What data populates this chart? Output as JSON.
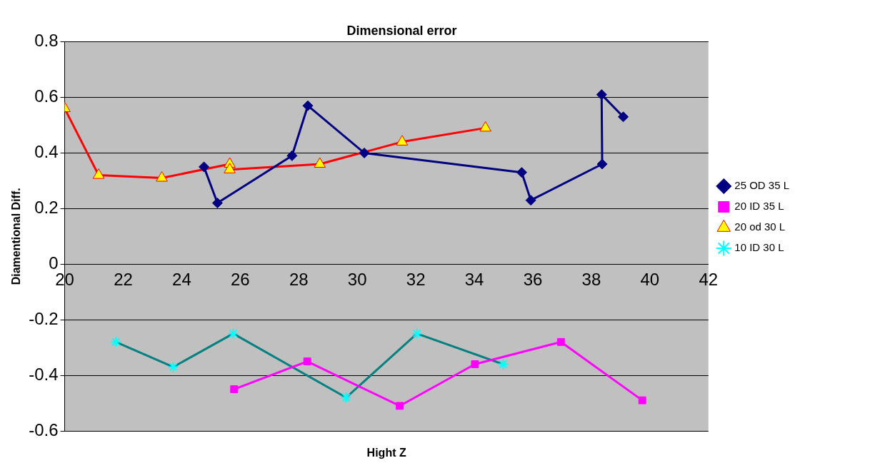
{
  "chart_data": {
    "type": "line",
    "title": "Dimensional error",
    "xlabel": "Hight Z",
    "ylabel": "Diamentional Diff.",
    "xlim": [
      20,
      42
    ],
    "xticks": [
      20,
      22,
      24,
      26,
      28,
      30,
      32,
      34,
      36,
      38,
      40,
      42
    ],
    "ylim": [
      -0.6,
      0.8
    ],
    "yticks": [
      -0.6,
      -0.4,
      -0.2,
      0,
      0.2,
      0.4,
      0.6,
      0.8
    ],
    "grid": "y",
    "legend": "right",
    "series": [
      {
        "name": "25 OD 35 L",
        "color": "#000080",
        "marker": "diamond",
        "x": [
          24.76,
          25.22,
          27.77,
          28.31,
          30.24,
          35.62,
          35.93,
          38.37,
          38.35,
          39.09
        ],
        "values": [
          0.35,
          0.22,
          0.39,
          0.57,
          0.4,
          0.33,
          0.23,
          0.36,
          0.61,
          0.53
        ]
      },
      {
        "name": "20 ID 35 L",
        "color": "#ff00ff",
        "marker": "square",
        "x": [
          25.79,
          28.29,
          31.45,
          34.02,
          36.96,
          39.74
        ],
        "values": [
          -0.45,
          -0.35,
          -0.51,
          -0.36,
          -0.28,
          -0.49
        ]
      },
      {
        "name": "20 od 30 L",
        "color": "#ff0000",
        "colors": [
          "#ffff00",
          "#ffff00",
          "#ffff00",
          "#ffff00",
          "#ffff00",
          "#ffff00",
          "#ffff00",
          "#ffff00"
        ],
        "marker": "triangle",
        "x": [
          20,
          21.16,
          23.32,
          25.64,
          25.64,
          28.72,
          31.53,
          34.38
        ],
        "values": [
          0.56,
          0.32,
          0.31,
          0.36,
          0.34,
          0.36,
          0.44,
          0.49
        ]
      },
      {
        "name": "10 ID 30 L",
        "color": "#008080",
        "colors": [
          "#00ffff",
          "#00ffff",
          "#00ffff",
          "#00ffff",
          "#00ffff",
          "#00ffff"
        ],
        "marker": "cross",
        "x": [
          21.75,
          23.71,
          25.76,
          29.62,
          32.04,
          34.98
        ],
        "values": [
          -0.28,
          -0.37,
          -0.25,
          -0.48,
          -0.25,
          -0.36
        ]
      }
    ]
  }
}
